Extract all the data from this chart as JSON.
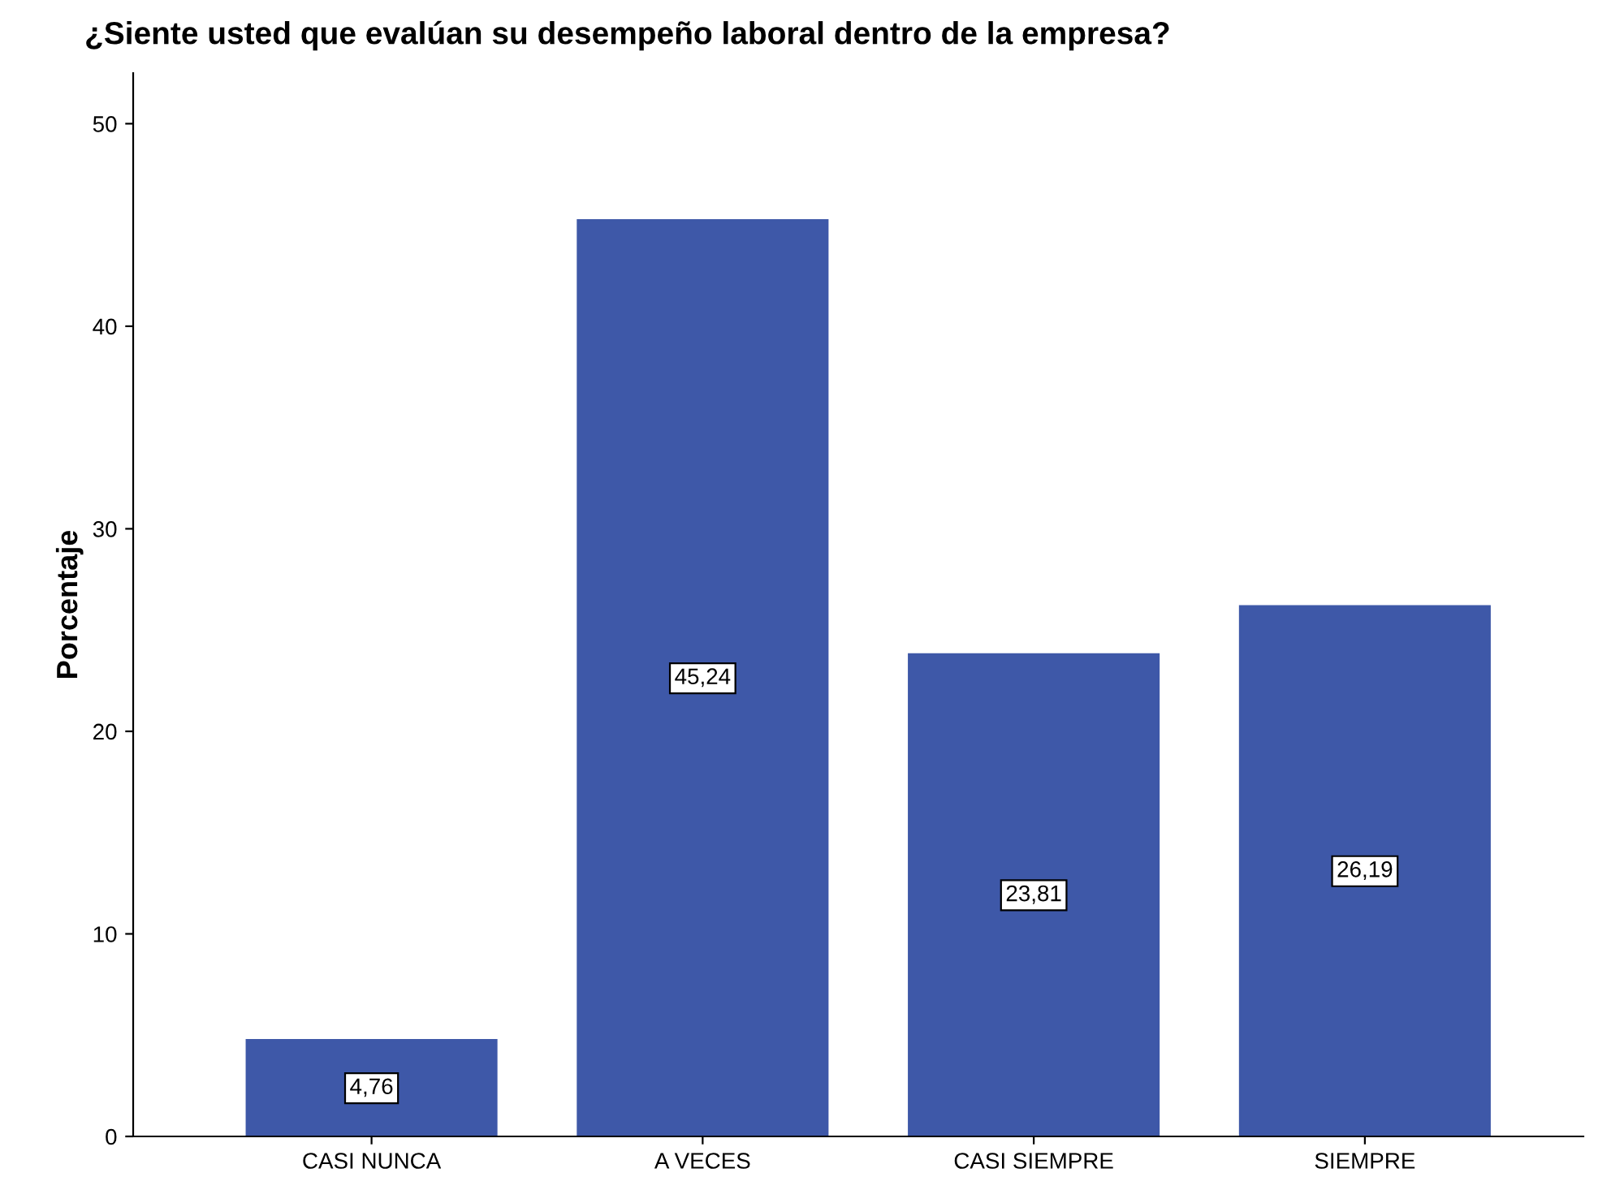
{
  "chart_data": {
    "type": "bar",
    "title": "¿Siente usted que evalúan su desempeño laboral dentro de la empresa?",
    "ylabel": "Porcentaje",
    "categories": [
      "CASI NUNCA",
      "A VECES",
      "CASI SIEMPRE",
      "SIEMPRE"
    ],
    "values": [
      4.76,
      45.24,
      23.81,
      26.19
    ],
    "value_labels": [
      "4,76",
      "45,24",
      "23,81",
      "26,19"
    ],
    "color": "#3e58a8",
    "ylim": [
      0,
      52.5
    ],
    "yticks": [
      0,
      10,
      20,
      30,
      40,
      50
    ],
    "grid": false,
    "legend": false
  }
}
